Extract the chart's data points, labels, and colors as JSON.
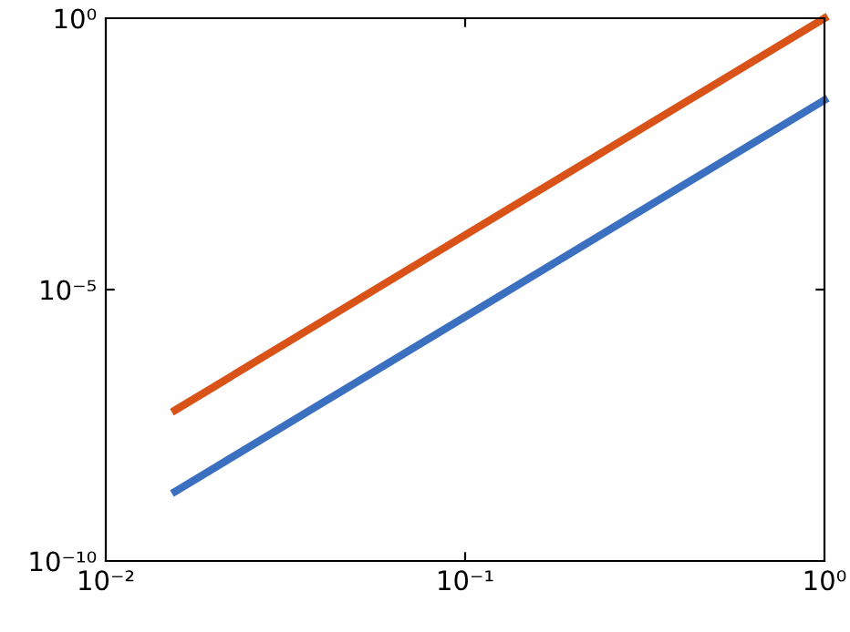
{
  "chart_data": {
    "type": "line",
    "log": "xy",
    "grid": false,
    "xlim": [
      0.01,
      1
    ],
    "ylim": [
      1e-10,
      1
    ],
    "xticks": [
      {
        "value": 0.01,
        "label": "10⁻²"
      },
      {
        "value": 0.1,
        "label": "10⁻¹"
      },
      {
        "value": 1,
        "label": "10⁰"
      }
    ],
    "yticks": [
      {
        "value": 1e-10,
        "label": "10⁻¹⁰"
      },
      {
        "value": 1e-05,
        "label": "10⁻⁵"
      },
      {
        "value": 1,
        "label": "10⁰"
      }
    ],
    "x": [
      0.0156,
      1
    ],
    "series": [
      {
        "color": "#d95319",
        "values": [
          6e-08,
          1
        ]
      },
      {
        "color": "#3b6fc0",
        "values": [
          1.9e-09,
          0.031
        ]
      }
    ]
  }
}
